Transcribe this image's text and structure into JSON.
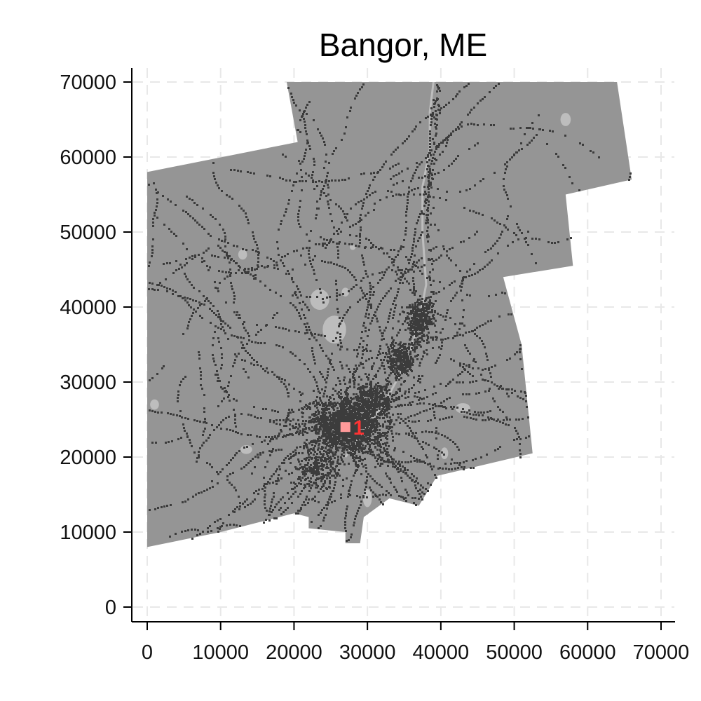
{
  "chart_data": {
    "type": "map",
    "title": "Bangor, ME",
    "xlim": [
      0,
      70000
    ],
    "ylim": [
      0,
      70000
    ],
    "x_ticks": [
      0,
      10000,
      20000,
      30000,
      40000,
      50000,
      60000,
      70000
    ],
    "y_ticks": [
      0,
      10000,
      20000,
      30000,
      40000,
      50000,
      60000,
      70000
    ],
    "x_tick_labels": [
      "0",
      "10000",
      "20000",
      "30000",
      "40000",
      "50000",
      "60000",
      "70000"
    ],
    "y_tick_labels": [
      "0",
      "10000",
      "20000",
      "30000",
      "40000",
      "50000",
      "60000",
      "70000"
    ],
    "grid": true,
    "region_outline": [
      [
        0,
        8000
      ],
      [
        10000,
        10000
      ],
      [
        20000,
        12500
      ],
      [
        22000,
        12000
      ],
      [
        22000,
        10500
      ],
      [
        27000,
        10000
      ],
      [
        27000,
        8500
      ],
      [
        29000,
        8500
      ],
      [
        29500,
        12000
      ],
      [
        33000,
        14500
      ],
      [
        37000,
        13500
      ],
      [
        39500,
        17500
      ],
      [
        52500,
        20500
      ],
      [
        51000,
        35000
      ],
      [
        48500,
        44000
      ],
      [
        58000,
        45500
      ],
      [
        57000,
        55000
      ],
      [
        66000,
        57000
      ],
      [
        64000,
        70000
      ],
      [
        19000,
        70000
      ],
      [
        20500,
        62000
      ],
      [
        0,
        58000
      ]
    ],
    "river": [
      [
        27000,
        20000
      ],
      [
        29500,
        23500
      ],
      [
        32500,
        27500
      ],
      [
        35500,
        33000
      ],
      [
        37000,
        38000
      ],
      [
        38000,
        43000
      ],
      [
        37500,
        50000
      ],
      [
        37500,
        56000
      ],
      [
        38500,
        61000
      ],
      [
        38500,
        66000
      ],
      [
        39000,
        70000
      ]
    ],
    "water_bodies": [
      {
        "x": 23500,
        "y": 41000,
        "rx": 1300,
        "ry": 1400
      },
      {
        "x": 25500,
        "y": 37000,
        "rx": 1600,
        "ry": 1900
      },
      {
        "x": 27000,
        "y": 42000,
        "rx": 500,
        "ry": 600
      },
      {
        "x": 13000,
        "y": 47000,
        "rx": 600,
        "ry": 700
      },
      {
        "x": 57000,
        "y": 65000,
        "rx": 700,
        "ry": 900
      },
      {
        "x": 43000,
        "y": 26500,
        "rx": 1000,
        "ry": 700
      },
      {
        "x": 40500,
        "y": 20500,
        "rx": 500,
        "ry": 800
      },
      {
        "x": 30000,
        "y": 14500,
        "rx": 600,
        "ry": 1200
      },
      {
        "x": 13500,
        "y": 21000,
        "rx": 800,
        "ry": 600
      },
      {
        "x": 1000,
        "y": 27000,
        "rx": 600,
        "ry": 700
      },
      {
        "x": 28000,
        "y": 48000,
        "rx": 400,
        "ry": 400
      }
    ],
    "urban_clusters": [
      {
        "x": 27000,
        "y": 24500,
        "rx": 4500,
        "ry": 3500,
        "n": 1400
      },
      {
        "x": 37000,
        "y": 38500,
        "rx": 1800,
        "ry": 2500,
        "n": 320
      },
      {
        "x": 34500,
        "y": 33000,
        "rx": 1600,
        "ry": 2200,
        "n": 260
      },
      {
        "x": 31000,
        "y": 28000,
        "rx": 2200,
        "ry": 2000,
        "n": 220
      },
      {
        "x": 23000,
        "y": 18500,
        "rx": 3000,
        "ry": 2500,
        "n": 200
      }
    ],
    "marker": {
      "x": 27000,
      "y": 24000,
      "label": "1",
      "color": "#ff3333"
    },
    "colors": {
      "land": "#959595",
      "water": "#bdbdbd",
      "roads": "#3c3c3c",
      "grid": "#e8e8e8",
      "marker": "#ff3333",
      "marker_fill": "#ff9a9a"
    }
  }
}
